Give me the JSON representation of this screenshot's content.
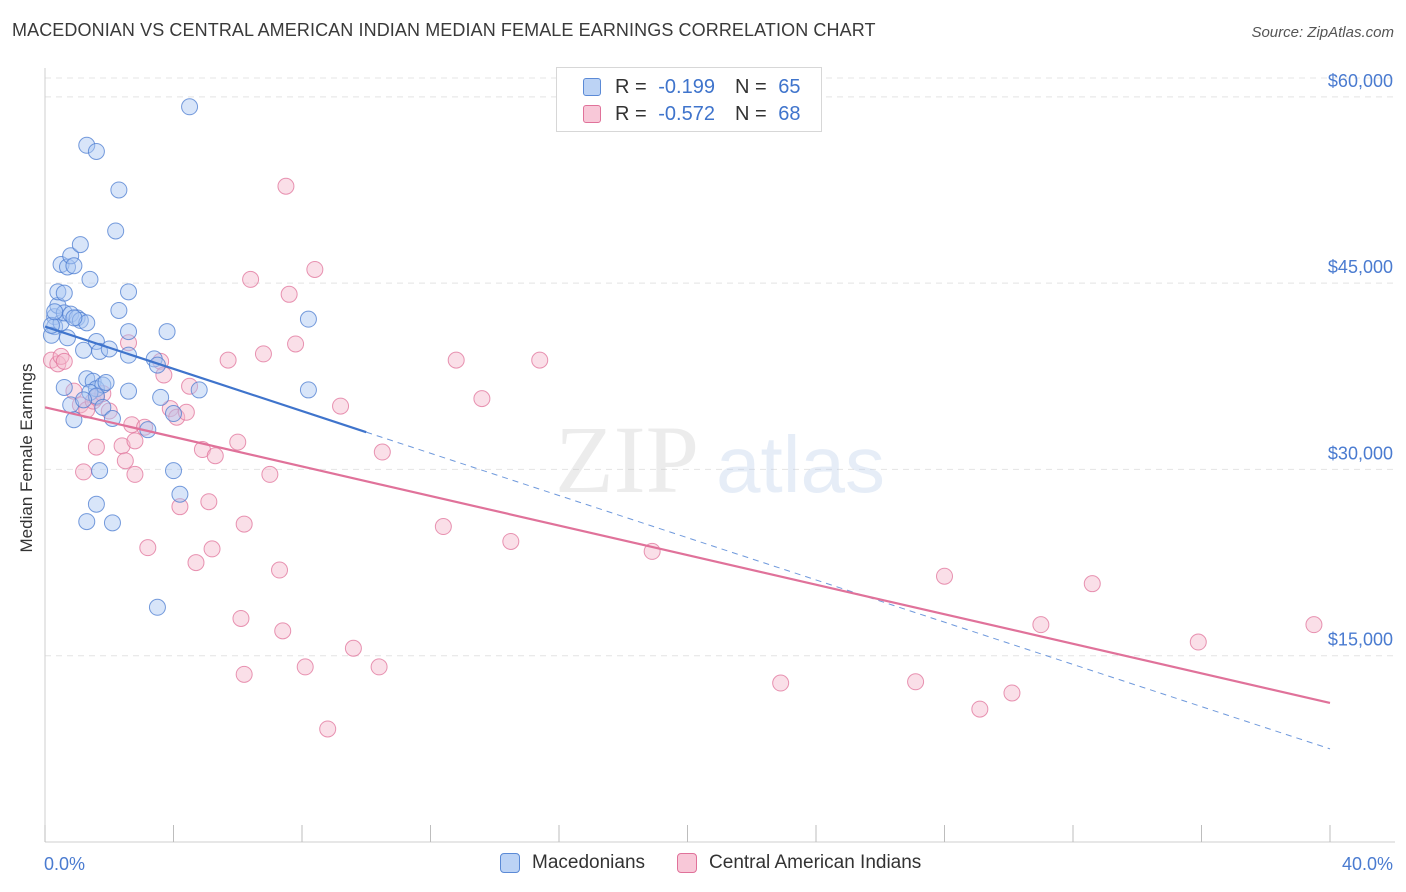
{
  "title": "MACEDONIAN VS CENTRAL AMERICAN INDIAN MEDIAN FEMALE EARNINGS CORRELATION CHART",
  "source": "Source: ZipAtlas.com",
  "watermark": {
    "zip": "ZIP",
    "atlas": "atlas"
  },
  "legend": {
    "r_label": "R =",
    "n_label": "N =",
    "rows": [
      {
        "r": "-0.199",
        "n": "65"
      },
      {
        "r": "-0.572",
        "n": "68"
      }
    ]
  },
  "bottom_legend": [
    "Macedonians",
    "Central American Indians"
  ],
  "chart_data": {
    "type": "scatter",
    "ylabel": "Median Female Earnings",
    "xlim": [
      0,
      40
    ],
    "ylim": [
      0,
      62000
    ],
    "x_tick_labels": [
      "0.0%",
      "40.0%"
    ],
    "y_ticks": [
      {
        "value": 15000,
        "label": "$15,000"
      },
      {
        "value": 30000,
        "label": "$30,000"
      },
      {
        "value": 45000,
        "label": "$45,000"
      },
      {
        "value": 60000,
        "label": "$60,000"
      }
    ],
    "colors": {
      "blue": "#4a7bd0",
      "pink": "#e0729a",
      "blue_fill": "#a9c6f2",
      "pink_fill": "#f5b8cc"
    },
    "series": [
      {
        "name": "Macedonians",
        "color": "#4a7bd0",
        "fill": "#a9c6f2",
        "trend": {
          "x0": 0,
          "y0": 41500,
          "x1": 10,
          "y1": 33000,
          "dash_to_x": 40,
          "dash_to_y": 7500
        },
        "points": [
          [
            0.3,
            42300
          ],
          [
            0.3,
            41500
          ],
          [
            0.5,
            41800
          ],
          [
            0.4,
            43200
          ],
          [
            0.6,
            42600
          ],
          [
            0.2,
            40800
          ],
          [
            0.5,
            46500
          ],
          [
            0.7,
            46300
          ],
          [
            0.8,
            47200
          ],
          [
            0.9,
            46400
          ],
          [
            1.1,
            48100
          ],
          [
            1.4,
            45300
          ],
          [
            0.4,
            44300
          ],
          [
            0.6,
            44200
          ],
          [
            0.8,
            42500
          ],
          [
            1.0,
            42200
          ],
          [
            1.1,
            42000
          ],
          [
            1.3,
            41800
          ],
          [
            0.7,
            40600
          ],
          [
            1.2,
            39600
          ],
          [
            1.6,
            40300
          ],
          [
            1.7,
            39500
          ],
          [
            2.0,
            39700
          ],
          [
            2.6,
            39200
          ],
          [
            3.4,
            38900
          ],
          [
            3.5,
            38400
          ],
          [
            1.3,
            37300
          ],
          [
            1.5,
            37100
          ],
          [
            1.6,
            36500
          ],
          [
            1.8,
            36800
          ],
          [
            1.4,
            36200
          ],
          [
            1.6,
            35900
          ],
          [
            2.6,
            36300
          ],
          [
            3.6,
            35800
          ],
          [
            4.8,
            36400
          ],
          [
            0.8,
            35200
          ],
          [
            1.2,
            35600
          ],
          [
            1.8,
            35000
          ],
          [
            0.9,
            34000
          ],
          [
            2.1,
            34100
          ],
          [
            4.0,
            34500
          ],
          [
            3.2,
            33200
          ],
          [
            1.7,
            29900
          ],
          [
            4.0,
            29900
          ],
          [
            1.6,
            27200
          ],
          [
            4.2,
            28000
          ],
          [
            1.3,
            25800
          ],
          [
            2.1,
            25700
          ],
          [
            3.5,
            18900
          ],
          [
            2.2,
            49200
          ],
          [
            2.3,
            52500
          ],
          [
            1.3,
            56100
          ],
          [
            1.6,
            55600
          ],
          [
            4.5,
            59200
          ],
          [
            2.6,
            44300
          ],
          [
            2.3,
            42800
          ],
          [
            2.6,
            41100
          ],
          [
            3.8,
            41100
          ],
          [
            8.2,
            42100
          ],
          [
            8.2,
            36400
          ],
          [
            0.2,
            41600
          ],
          [
            0.3,
            42700
          ],
          [
            0.9,
            42200
          ],
          [
            0.6,
            36600
          ],
          [
            1.9,
            37000
          ]
        ]
      },
      {
        "name": "Central American Indians",
        "color": "#e0729a",
        "fill": "#f5b8cc",
        "trend": {
          "x0": 0,
          "y0": 35000,
          "x1": 40,
          "y1": 11200
        },
        "points": [
          [
            0.2,
            38800
          ],
          [
            0.4,
            38500
          ],
          [
            0.5,
            39100
          ],
          [
            0.6,
            38700
          ],
          [
            0.9,
            36300
          ],
          [
            1.1,
            35200
          ],
          [
            1.3,
            34800
          ],
          [
            1.5,
            35500
          ],
          [
            1.6,
            35800
          ],
          [
            1.8,
            36100
          ],
          [
            2.0,
            34700
          ],
          [
            2.4,
            31900
          ],
          [
            2.6,
            40200
          ],
          [
            2.7,
            33600
          ],
          [
            2.8,
            32300
          ],
          [
            3.1,
            33400
          ],
          [
            3.6,
            38700
          ],
          [
            3.7,
            37600
          ],
          [
            3.9,
            34900
          ],
          [
            4.1,
            34200
          ],
          [
            4.4,
            34600
          ],
          [
            4.2,
            27000
          ],
          [
            4.9,
            31600
          ],
          [
            4.5,
            36700
          ],
          [
            5.1,
            27400
          ],
          [
            5.3,
            31100
          ],
          [
            5.7,
            38800
          ],
          [
            6.0,
            32200
          ],
          [
            6.2,
            25600
          ],
          [
            6.8,
            39300
          ],
          [
            7.0,
            29600
          ],
          [
            7.3,
            21900
          ],
          [
            7.4,
            17000
          ],
          [
            7.6,
            44100
          ],
          [
            7.8,
            40100
          ],
          [
            8.1,
            14100
          ],
          [
            8.8,
            9100
          ],
          [
            9.2,
            35100
          ],
          [
            9.6,
            15600
          ],
          [
            10.4,
            14100
          ],
          [
            10.5,
            31400
          ],
          [
            12.4,
            25400
          ],
          [
            12.8,
            38800
          ],
          [
            13.6,
            35700
          ],
          [
            14.5,
            24200
          ],
          [
            15.4,
            38800
          ],
          [
            18.9,
            23400
          ],
          [
            22.9,
            12800
          ],
          [
            27.1,
            12900
          ],
          [
            28.0,
            21400
          ],
          [
            29.1,
            10700
          ],
          [
            30.1,
            12000
          ],
          [
            31.0,
            17500
          ],
          [
            32.6,
            20800
          ],
          [
            35.9,
            16100
          ],
          [
            39.5,
            17500
          ],
          [
            1.2,
            29800
          ],
          [
            2.8,
            29600
          ],
          [
            3.2,
            23700
          ],
          [
            4.7,
            22500
          ],
          [
            5.2,
            23600
          ],
          [
            6.1,
            18000
          ],
          [
            6.2,
            13500
          ],
          [
            8.4,
            46100
          ],
          [
            2.5,
            30700
          ],
          [
            1.6,
            31800
          ],
          [
            7.5,
            52800
          ],
          [
            6.4,
            45300
          ]
        ]
      }
    ]
  }
}
